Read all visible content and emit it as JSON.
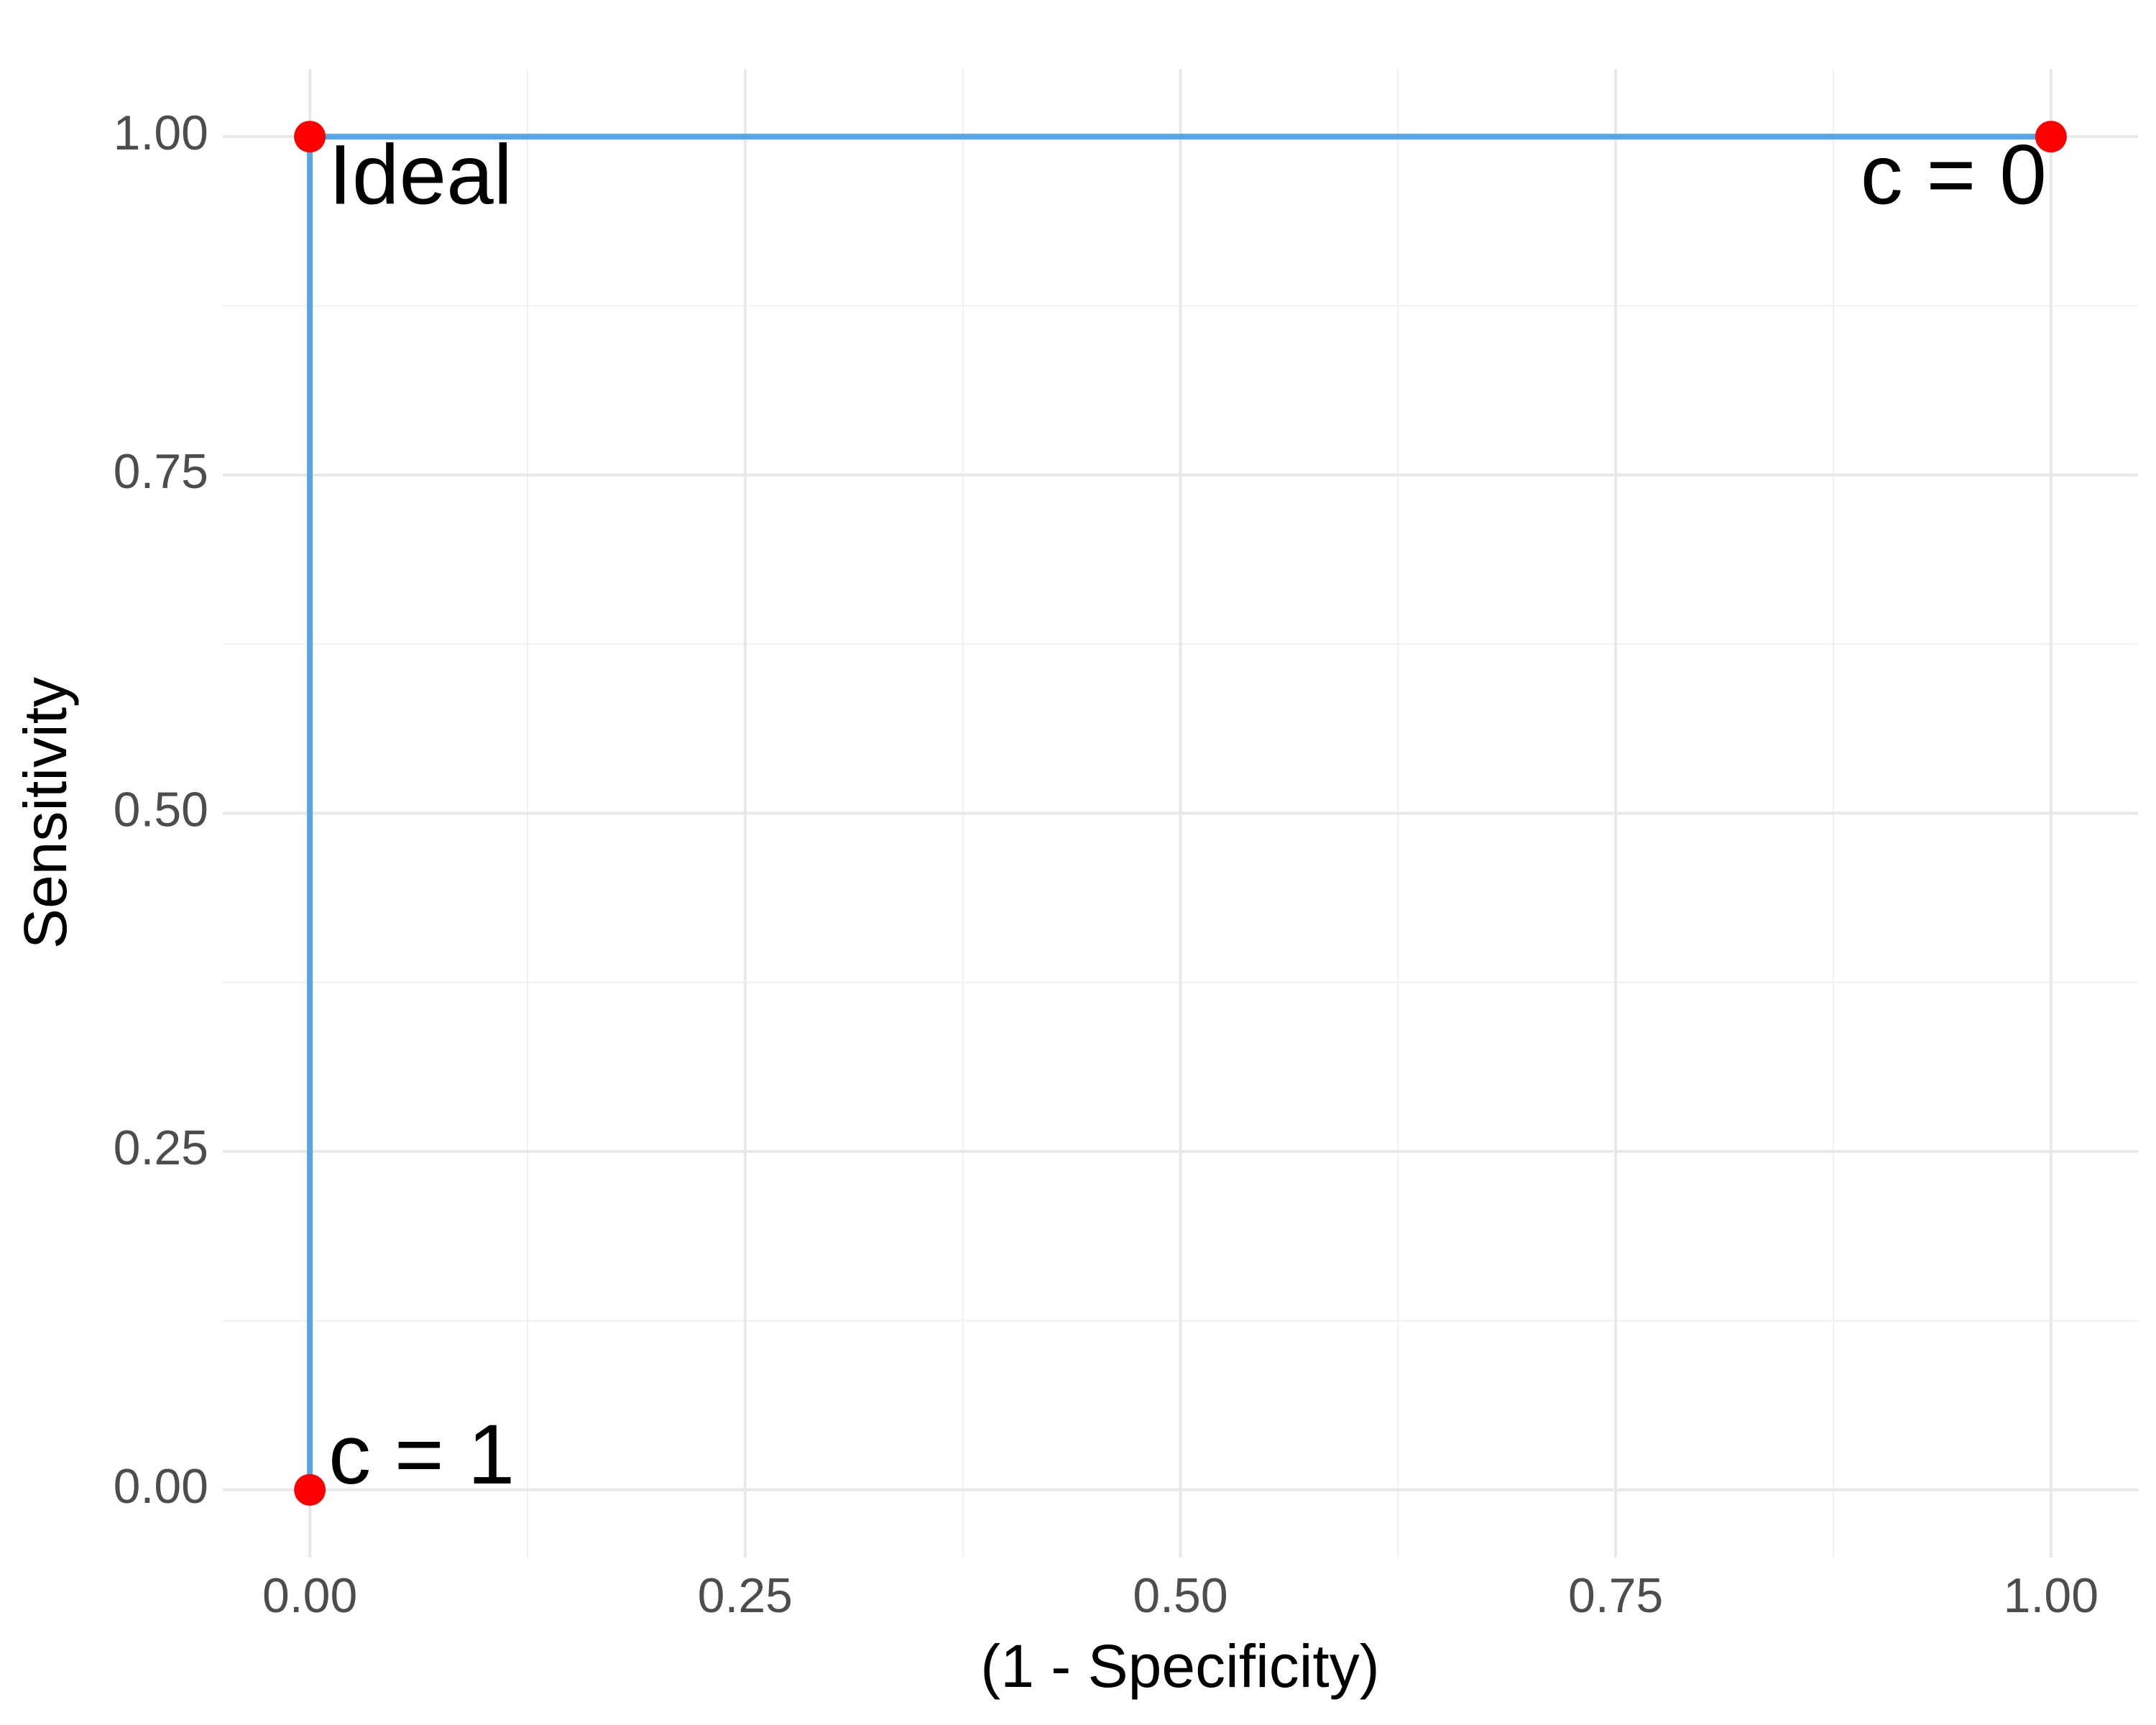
{
  "chart_data": {
    "type": "scatter",
    "x_label": "(1 - Specificity)",
    "y_label": "Sensitivity",
    "xlim": [
      -0.05,
      1.05
    ],
    "ylim": [
      -0.05,
      1.05
    ],
    "xticks": [
      {
        "value": 0,
        "label": "0.00"
      },
      {
        "value": 0.25,
        "label": "0.25"
      },
      {
        "value": 0.5,
        "label": "0.50"
      },
      {
        "value": 0.75,
        "label": "0.75"
      },
      {
        "value": 1,
        "label": "1.00"
      }
    ],
    "yticks": [
      {
        "value": 0,
        "label": "0.00"
      },
      {
        "value": 0.25,
        "label": "0.25"
      },
      {
        "value": 0.5,
        "label": "0.50"
      },
      {
        "value": 0.75,
        "label": "0.75"
      },
      {
        "value": 1,
        "label": "1.00"
      }
    ],
    "x_minor_ticks": [
      0.125,
      0.375,
      0.625,
      0.875
    ],
    "y_minor_ticks": [
      0.125,
      0.375,
      0.625,
      0.875
    ],
    "grid": true,
    "series": [
      {
        "style": "line",
        "color": "#56a5e6",
        "x": [
          0,
          0,
          1
        ],
        "values": [
          0,
          1,
          1
        ]
      },
      {
        "style": "points",
        "color": "#ff0000",
        "x": [
          0,
          0,
          1
        ],
        "values": [
          0,
          1,
          1
        ]
      }
    ],
    "annotations": [
      {
        "text": "c = 1",
        "x": 0,
        "y": 0
      },
      {
        "text": "Ideal",
        "x": 0,
        "y": 1
      },
      {
        "text": "c = 0",
        "x": 1,
        "y": 1
      }
    ]
  }
}
